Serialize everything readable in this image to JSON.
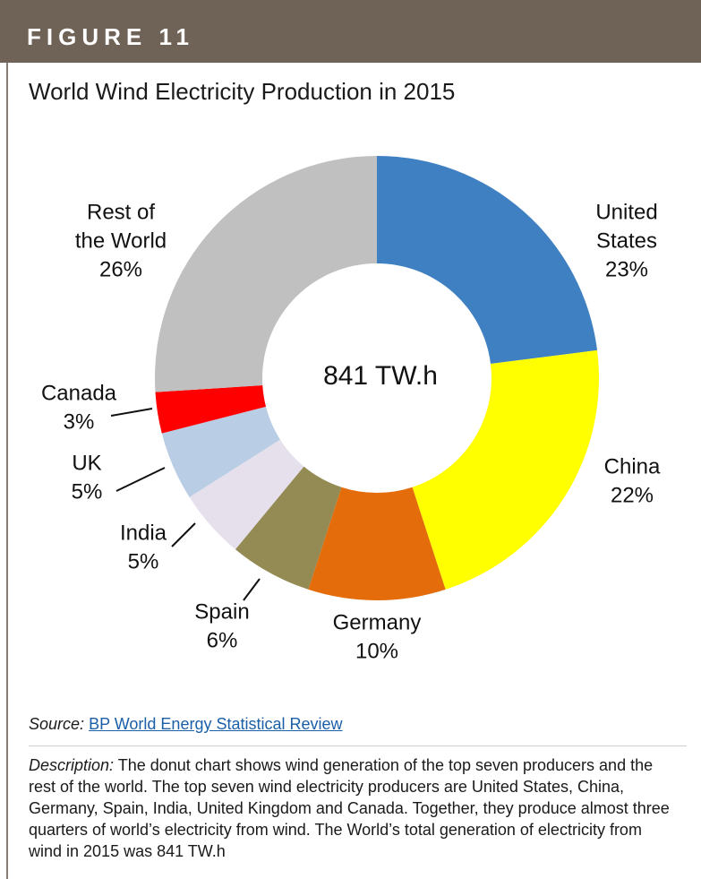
{
  "figure": {
    "label": "FIGURE 11",
    "title": "World Wind Electricity Production in 2015"
  },
  "chart_data": {
    "type": "pie",
    "variant": "donut",
    "title": "World Wind Electricity Production in 2015",
    "center_label": "841 TW.h",
    "unit": "%",
    "slices": [
      {
        "name": "United States",
        "label_lines": [
          "United",
          "States"
        ],
        "value": 23,
        "value_label": "23%",
        "color": "#3f80c2"
      },
      {
        "name": "China",
        "label_lines": [
          "China"
        ],
        "value": 22,
        "value_label": "22%",
        "color": "#ffff00"
      },
      {
        "name": "Germany",
        "label_lines": [
          "Germany"
        ],
        "value": 10,
        "value_label": "10%",
        "color": "#e46c0a"
      },
      {
        "name": "Spain",
        "label_lines": [
          "Spain"
        ],
        "value": 6,
        "value_label": "6%",
        "color": "#948a54"
      },
      {
        "name": "India",
        "label_lines": [
          "India"
        ],
        "value": 5,
        "value_label": "5%",
        "color": "#e6e0ec"
      },
      {
        "name": "UK",
        "label_lines": [
          "UK"
        ],
        "value": 5,
        "value_label": "5%",
        "color": "#b9cde5"
      },
      {
        "name": "Canada",
        "label_lines": [
          "Canada"
        ],
        "value": 3,
        "value_label": "3%",
        "color": "#ff0000"
      },
      {
        "name": "Rest of the World",
        "label_lines": [
          "Rest of",
          "the World"
        ],
        "value": 26,
        "value_label": "26%",
        "color": "#c0c0c0"
      }
    ]
  },
  "source": {
    "label": "Source:",
    "link_text": "BP World Energy Statistical Review"
  },
  "description": {
    "label": "Description:",
    "text": " The donut chart shows wind generation of the top seven producers and the rest of the world. The top seven wind electricity producers are United States, China, Germany, Spain, India, United Kingdom and Canada. Together, they produce almost three quarters of world’s electricity from wind. The World’s total generation of electricity from wind in 2015 was 841 TW.h"
  }
}
